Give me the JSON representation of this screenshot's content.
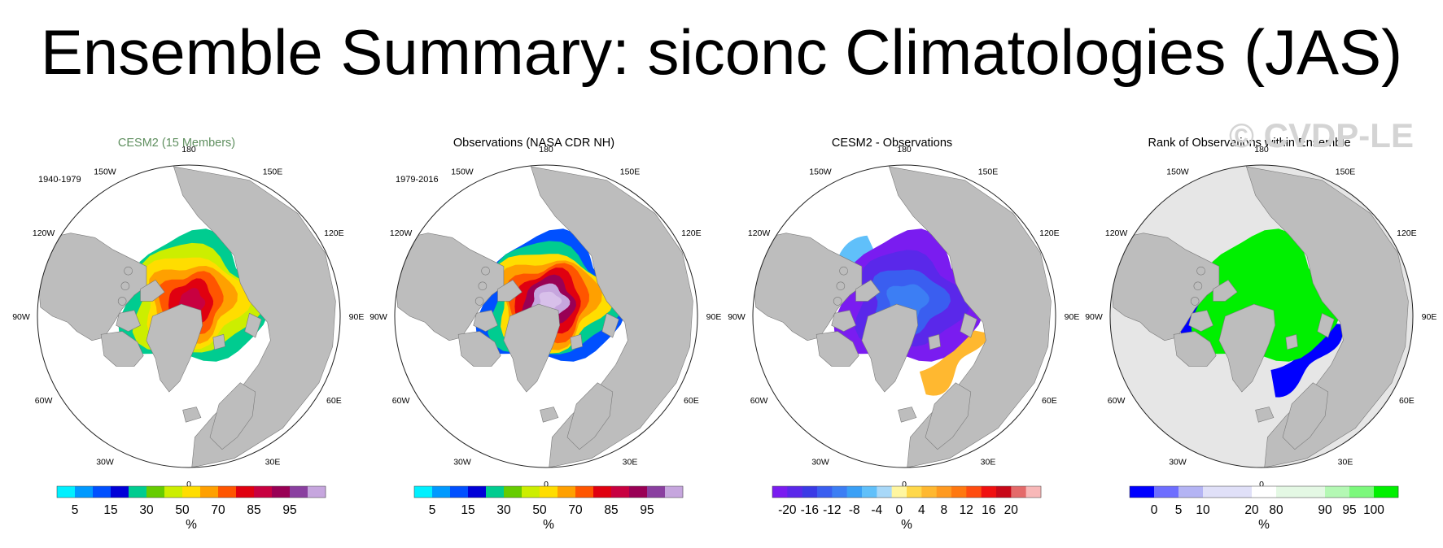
{
  "title": "Ensemble Summary: siconc Climatologies (JAS)",
  "watermark": "© CVDP-LE",
  "longitude_labels": [
    "180",
    "150E",
    "120E",
    "90E",
    "60E",
    "30E",
    "0",
    "30W",
    "60W",
    "90W",
    "120W",
    "150W"
  ],
  "colors": {
    "land": "#bdbdbd",
    "ocean": "#ffffff",
    "rank_ocean": "#e6e6e6",
    "cesm2_title": "#5f8f5f",
    "text": "#000000"
  },
  "panels": [
    {
      "id": "cesm2",
      "title": "CESM2 (15 Members)",
      "period": "1940-1979",
      "colorbar": {
        "colors": [
          "#00f0ff",
          "#0099ff",
          "#0050ff",
          "#0000d8",
          "#00cc90",
          "#66cc00",
          "#ccee00",
          "#ffdd00",
          "#ffa000",
          "#ff5500",
          "#e00010",
          "#c80040",
          "#990055",
          "#8a3fa0",
          "#c6a6de"
        ],
        "ticks": [
          "5",
          "15",
          "30",
          "50",
          "70",
          "85",
          "95"
        ],
        "tick_edges": [
          1,
          3,
          5,
          7,
          9,
          11,
          13
        ],
        "unit": "%"
      }
    },
    {
      "id": "obs",
      "title": "Observations (NASA CDR NH)",
      "period": "1979-2016",
      "colorbar": {
        "colors": [
          "#00f0ff",
          "#0099ff",
          "#0050ff",
          "#0000d8",
          "#00cc90",
          "#66cc00",
          "#ccee00",
          "#ffdd00",
          "#ffa000",
          "#ff5500",
          "#e00010",
          "#c80040",
          "#990055",
          "#8a3fa0",
          "#c6a6de"
        ],
        "ticks": [
          "5",
          "15",
          "30",
          "50",
          "70",
          "85",
          "95"
        ],
        "tick_edges": [
          1,
          3,
          5,
          7,
          9,
          11,
          13
        ],
        "unit": "%"
      }
    },
    {
      "id": "diff",
      "title": "CESM2 - Observations",
      "period": "",
      "colorbar": {
        "colors": [
          "#7a1cf0",
          "#5a28ea",
          "#3a3ae6",
          "#3a5ef0",
          "#3c7ef4",
          "#3aa0f6",
          "#60c0fa",
          "#a8d8f8",
          "#fff6a0",
          "#ffd84a",
          "#ffb830",
          "#ff9a20",
          "#ff7810",
          "#ff4c10",
          "#f01010",
          "#c80818",
          "#e46a6a",
          "#f8b8b8"
        ],
        "ticks": [
          "-20",
          "-16",
          "-12",
          "-8",
          "-4",
          "0",
          "4",
          "8",
          "12",
          "16",
          "20"
        ],
        "tick_edges": [
          1,
          2.5,
          4,
          5.5,
          7,
          8.5,
          10,
          11.5,
          13,
          14.5,
          16
        ],
        "unit": "%"
      }
    },
    {
      "id": "rank",
      "title": "Rank of Observations within Ensemble",
      "period": "",
      "colorbar": {
        "colors": [
          "#0000ff",
          "#6e6eff",
          "#b4b4f4",
          "#e0e0f8",
          "#e0e0f8",
          "#ffffff",
          "#e4f8e4",
          "#e4f8e4",
          "#b4f8b4",
          "#7cf87c",
          "#00f000"
        ],
        "ticks": [
          "0",
          "5",
          "10",
          "20",
          "80",
          "90",
          "95",
          "100"
        ],
        "tick_edges": [
          1,
          2,
          3,
          5,
          6,
          8,
          9,
          10
        ],
        "unit": "%"
      }
    }
  ]
}
